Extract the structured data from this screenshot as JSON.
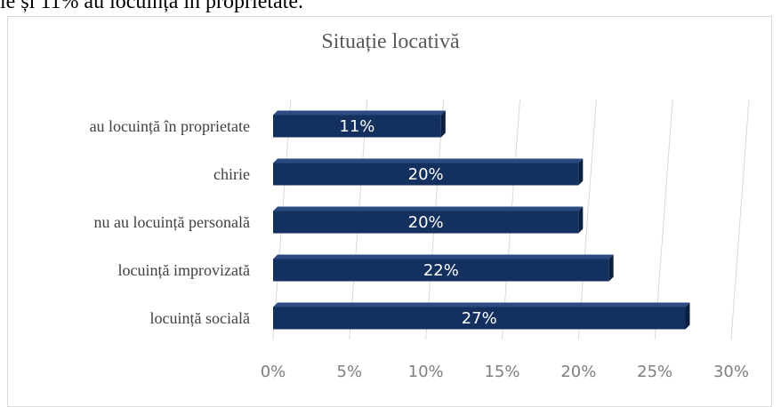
{
  "top_text": "le și 11% au locuința în proprietate.",
  "chart_data": {
    "type": "bar",
    "orientation": "horizontal",
    "title": "Situație locativă",
    "categories": [
      "au locuință  în proprietate",
      "chirie",
      "nu au locuință  personală",
      "locuință  improvizată",
      "locuință  socială"
    ],
    "values": [
      11,
      20,
      20,
      22,
      27
    ],
    "data_labels": [
      "11%",
      "20%",
      "20%",
      "22%",
      "27%"
    ],
    "xlim": [
      0,
      30
    ],
    "x_ticks": [
      "0%",
      "5%",
      "10%",
      "15%",
      "20%",
      "25%",
      "30%"
    ],
    "bar_color": "#14305e",
    "grid": true
  }
}
